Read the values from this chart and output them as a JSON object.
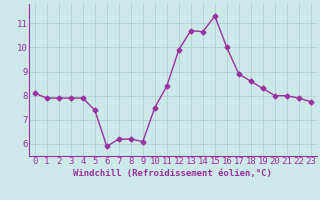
{
  "x": [
    0,
    1,
    2,
    3,
    4,
    5,
    6,
    7,
    8,
    9,
    10,
    11,
    12,
    13,
    14,
    15,
    16,
    17,
    18,
    19,
    20,
    21,
    22,
    23
  ],
  "y": [
    8.1,
    7.9,
    7.9,
    7.9,
    7.9,
    7.4,
    5.9,
    6.2,
    6.2,
    6.1,
    7.5,
    8.4,
    9.9,
    10.7,
    10.65,
    11.3,
    10.0,
    8.9,
    8.6,
    8.3,
    8.0,
    8.0,
    7.9,
    7.75
  ],
  "line_color": "#9b30a0",
  "marker": "D",
  "markersize": 2.5,
  "linewidth": 1.0,
  "background_color": "#cce8e8",
  "grid_color": "#aacccc",
  "xlabel": "Windchill (Refroidissement éolien,°C)",
  "xlabel_fontsize": 6.5,
  "ylabel_ticks": [
    6,
    7,
    8,
    9,
    10,
    11
  ],
  "xtick_labels": [
    "0",
    "1",
    "2",
    "3",
    "4",
    "5",
    "6",
    "7",
    "8",
    "9",
    "10",
    "11",
    "12",
    "13",
    "14",
    "15",
    "16",
    "17",
    "18",
    "19",
    "20",
    "21",
    "22",
    "23"
  ],
  "ylim": [
    5.5,
    11.8
  ],
  "xlim": [
    -0.5,
    23.5
  ],
  "tick_fontsize": 6.5,
  "axis_color": "#9b30a0",
  "spine_color": "#9b30a0"
}
